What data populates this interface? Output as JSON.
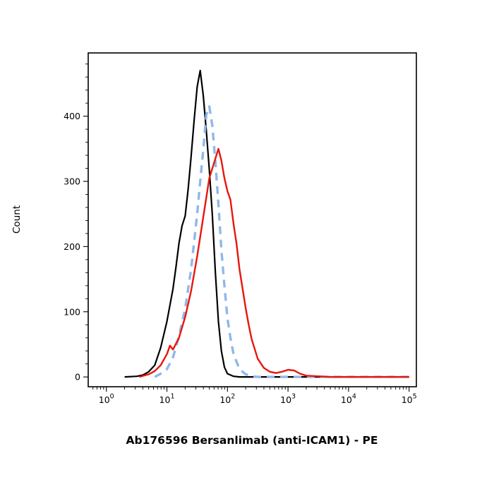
{
  "chart_data": {
    "type": "line",
    "title": "Ab176596 Bersanlimab (anti-ICAM1) - PE",
    "xlabel": "Ab176596 Bersanlimab (anti-ICAM1) - PE",
    "ylabel": "Count",
    "grid": false,
    "legend": "none",
    "x_axis": {
      "scale": "log10",
      "tick_base": "10",
      "tick_exponents": [
        0,
        1,
        2,
        3,
        4,
        5
      ],
      "min_exp": -0.3,
      "max_exp": 5.12
    },
    "y_axis": {
      "min": -15,
      "max": 497,
      "major_ticks": [
        0,
        100,
        200,
        300,
        400
      ],
      "minor_step": 20
    },
    "series": [
      {
        "id": "black-solid",
        "label": "black solid histogram",
        "color": "#000000",
        "width": 2.2,
        "dash": null,
        "points": [
          [
            2,
            0
          ],
          [
            3.2,
            1
          ],
          [
            4,
            3
          ],
          [
            5,
            8
          ],
          [
            6.3,
            18
          ],
          [
            7.9,
            45
          ],
          [
            10,
            85
          ],
          [
            12.6,
            135
          ],
          [
            14.1,
            168
          ],
          [
            15.8,
            205
          ],
          [
            17.8,
            232
          ],
          [
            20,
            247
          ],
          [
            22.4,
            288
          ],
          [
            25.1,
            338
          ],
          [
            28.2,
            395
          ],
          [
            31.6,
            445
          ],
          [
            35.5,
            470
          ],
          [
            39.8,
            432
          ],
          [
            44.7,
            378
          ],
          [
            50.1,
            318
          ],
          [
            56.2,
            248
          ],
          [
            63.1,
            160
          ],
          [
            70.8,
            85
          ],
          [
            79.4,
            40
          ],
          [
            89.1,
            15
          ],
          [
            100,
            5
          ],
          [
            126,
            1
          ],
          [
            158,
            0
          ],
          [
            100000,
            0
          ]
        ]
      },
      {
        "id": "blue-dashed",
        "label": "light-blue dashed histogram",
        "color": "#8fb8ea",
        "width": 3.4,
        "dash": "11 8",
        "points": [
          [
            6.3,
            0
          ],
          [
            7.9,
            5
          ],
          [
            10,
            12
          ],
          [
            12.6,
            30
          ],
          [
            15.8,
            62
          ],
          [
            20,
            105
          ],
          [
            25.1,
            165
          ],
          [
            31.6,
            250
          ],
          [
            35.5,
            300
          ],
          [
            39.8,
            348
          ],
          [
            44.7,
            402
          ],
          [
            50.1,
            415
          ],
          [
            56.2,
            385
          ],
          [
            63.1,
            330
          ],
          [
            70.8,
            265
          ],
          [
            79.4,
            195
          ],
          [
            89.1,
            140
          ],
          [
            100,
            90
          ],
          [
            112,
            60
          ],
          [
            126,
            35
          ],
          [
            158,
            12
          ],
          [
            200,
            4
          ],
          [
            251,
            1
          ],
          [
            316,
            0
          ],
          [
            100000,
            0
          ]
        ]
      },
      {
        "id": "red-solid",
        "label": "red solid histogram",
        "color": "#e8160c",
        "width": 2.4,
        "dash": null,
        "points": [
          [
            3.5,
            0
          ],
          [
            5,
            4
          ],
          [
            6.3,
            9
          ],
          [
            7.9,
            18
          ],
          [
            10,
            35
          ],
          [
            11.2,
            48
          ],
          [
            12.6,
            42
          ],
          [
            15.8,
            60
          ],
          [
            20,
            92
          ],
          [
            25.1,
            132
          ],
          [
            31.6,
            185
          ],
          [
            39.8,
            245
          ],
          [
            50.1,
            305
          ],
          [
            63.1,
            335
          ],
          [
            70.8,
            350
          ],
          [
            79.4,
            332
          ],
          [
            89.1,
            305
          ],
          [
            100,
            285
          ],
          [
            112,
            272
          ],
          [
            126,
            235
          ],
          [
            141,
            205
          ],
          [
            158,
            165
          ],
          [
            178,
            135
          ],
          [
            200,
            105
          ],
          [
            224,
            80
          ],
          [
            251,
            58
          ],
          [
            316,
            28
          ],
          [
            398,
            14
          ],
          [
            501,
            8
          ],
          [
            631,
            6
          ],
          [
            794,
            8
          ],
          [
            1000,
            11
          ],
          [
            1260,
            10
          ],
          [
            1580,
            5
          ],
          [
            2000,
            2
          ],
          [
            3160,
            1
          ],
          [
            5010,
            0
          ],
          [
            100000,
            0
          ]
        ]
      }
    ]
  }
}
